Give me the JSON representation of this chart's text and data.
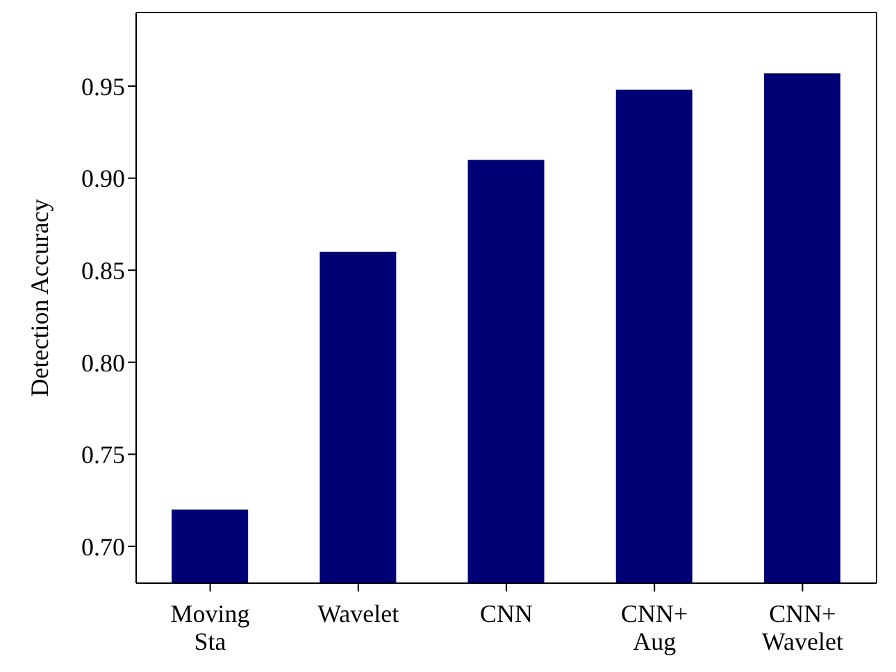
{
  "chart_data": {
    "type": "bar",
    "ylabel": "Detection Accuracy",
    "categories": [
      "Moving\nSta",
      "Wavelet",
      "CNN",
      "CNN+\nAug",
      "CNN+\nWavelet"
    ],
    "values": [
      0.72,
      0.86,
      0.91,
      0.948,
      0.957
    ],
    "color": "#000075",
    "ylim": [
      0.68,
      0.99
    ],
    "yticks": [
      {
        "value": 0.7,
        "label": "0.70"
      },
      {
        "value": 0.75,
        "label": "0.75"
      },
      {
        "value": 0.8,
        "label": "0.80"
      },
      {
        "value": 0.85,
        "label": "0.85"
      },
      {
        "value": 0.9,
        "label": "0.90"
      },
      {
        "value": 0.95,
        "label": "0.95"
      }
    ],
    "grid": false
  }
}
